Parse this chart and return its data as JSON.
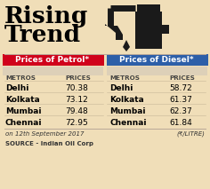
{
  "title_line1": "Rising",
  "title_line2": "Trend",
  "bg_color": "#f0deb8",
  "petrol_header": "Prices of Petrol*",
  "diesel_header": "Prices of Diesel*",
  "petrol_header_color": "#d0021b",
  "diesel_header_color": "#2d5fa8",
  "col_header": [
    "METROS",
    "PRICES"
  ],
  "petrol_data": [
    [
      "Delhi",
      "70.38"
    ],
    [
      "Kolkata",
      "73.12"
    ],
    [
      "Mumbai",
      "79.48"
    ],
    [
      "Chennai",
      "72.95"
    ]
  ],
  "diesel_data": [
    [
      "Delhi",
      "58.72"
    ],
    [
      "Kolkata",
      "61.37"
    ],
    [
      "Mumbai",
      "62.37"
    ],
    [
      "Chennai",
      "61.84"
    ]
  ],
  "footer_left": "on 12th September 2017",
  "footer_right": "(₹/LITRE)",
  "source": "SOURCE - Indian Oil Corp",
  "pump_color": "#1a1a1a",
  "title_fontsize": 19,
  "header_fontsize": 6.5,
  "col_header_fontsize": 5.2,
  "data_fontsize": 6.5,
  "footer_fontsize": 5.0
}
